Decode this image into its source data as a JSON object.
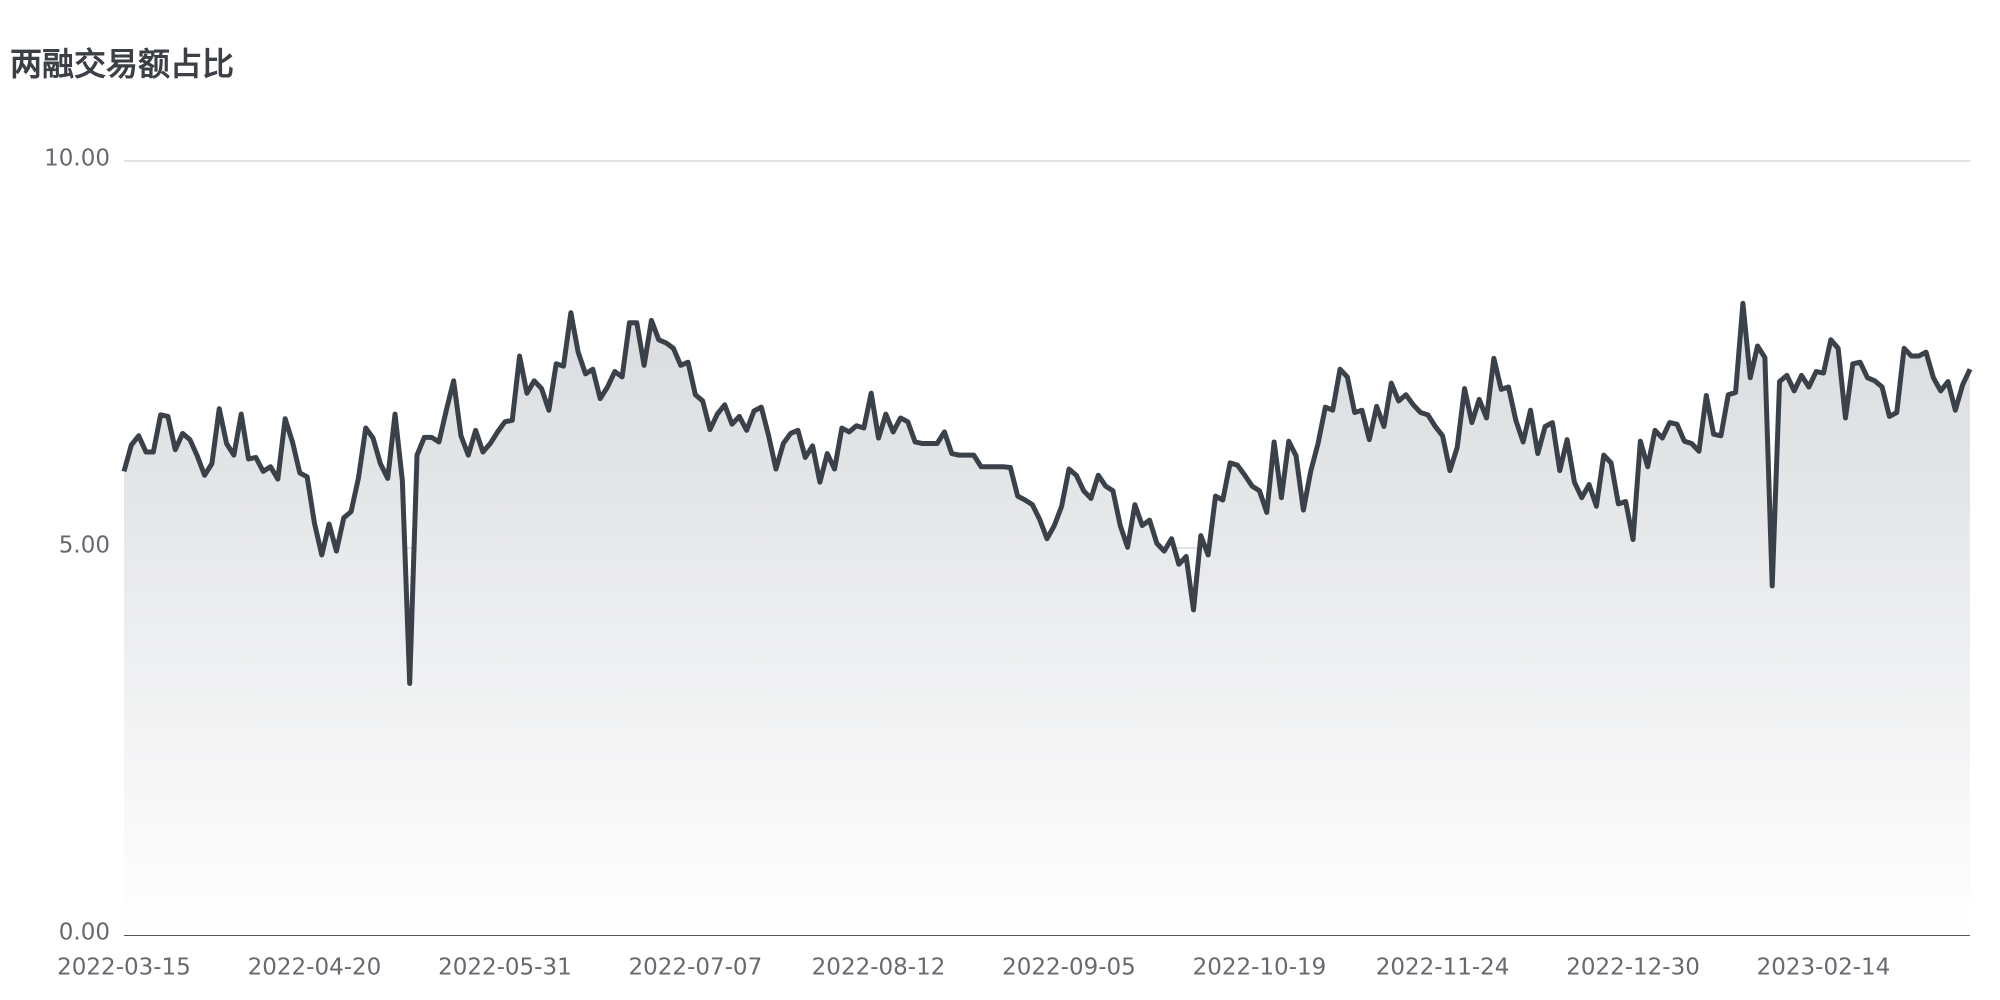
{
  "chart_data": {
    "type": "line",
    "title": "两融交易额占比",
    "color": "#3a4149",
    "area": true,
    "grid": true,
    "categories": [
      "2022-03-15",
      null,
      null,
      null,
      null,
      null,
      null,
      null,
      null,
      null,
      null,
      null,
      null,
      null,
      null,
      null,
      null,
      null,
      null,
      null,
      null,
      null,
      null,
      null,
      null,
      null,
      "2022-04-20",
      null,
      null,
      null,
      null,
      null,
      null,
      null,
      null,
      null,
      null,
      null,
      null,
      null,
      null,
      null,
      null,
      null,
      null,
      null,
      null,
      null,
      null,
      null,
      null,
      null,
      "2022-05-31",
      null,
      null,
      null,
      null,
      null,
      null,
      null,
      null,
      null,
      null,
      null,
      null,
      null,
      null,
      null,
      null,
      null,
      null,
      null,
      null,
      null,
      null,
      null,
      null,
      null,
      "2022-07-07",
      null,
      null,
      null,
      null,
      null,
      null,
      null,
      null,
      null,
      null,
      null,
      null,
      null,
      null,
      null,
      null,
      null,
      null,
      null,
      null,
      null,
      null,
      null,
      null,
      "2022-08-12",
      null,
      null,
      null,
      null,
      null,
      null,
      null,
      null,
      null,
      null,
      null,
      null,
      null,
      null,
      null,
      null,
      null,
      null,
      null,
      null,
      null,
      null,
      null,
      null,
      null,
      "2022-09-05",
      null,
      null,
      null,
      null,
      null,
      null,
      null,
      null,
      null,
      null,
      null,
      null,
      null,
      null,
      null,
      null,
      null,
      null,
      null,
      null,
      null,
      null,
      null,
      null,
      null,
      "2022-10-19",
      null,
      null,
      null,
      null,
      null,
      null,
      null,
      null,
      null,
      null,
      null,
      null,
      null,
      null,
      null,
      null,
      null,
      null,
      null,
      null,
      null,
      null,
      null,
      null,
      "2022-11-24",
      null,
      null,
      null,
      null,
      null,
      null,
      null,
      null,
      null,
      null,
      null,
      null,
      null,
      null,
      null,
      null,
      null,
      null,
      null,
      null,
      null,
      null,
      null,
      null,
      null,
      "2022-12-30",
      null,
      null,
      null,
      null,
      null,
      null,
      null,
      null,
      null,
      null,
      null,
      null,
      null,
      null,
      null,
      null,
      null,
      null,
      null,
      null,
      null,
      null,
      null,
      null,
      null,
      "2023-02-14",
      null,
      null,
      null,
      null,
      null,
      null,
      null,
      null,
      null,
      null,
      null,
      null,
      null,
      null,
      null,
      null,
      null,
      null,
      null,
      null
    ],
    "values": [
      5.99,
      6.33,
      6.45,
      6.24,
      6.24,
      6.72,
      6.7,
      6.27,
      6.48,
      6.4,
      6.19,
      5.94,
      6.09,
      6.8,
      6.35,
      6.2,
      6.73,
      6.15,
      6.17,
      5.99,
      6.05,
      5.89,
      6.67,
      6.37,
      5.97,
      5.92,
      5.32,
      4.91,
      5.31,
      4.96,
      5.39,
      5.47,
      5.9,
      6.55,
      6.42,
      6.09,
      5.9,
      6.73,
      5.87,
      3.25,
      6.2,
      6.43,
      6.43,
      6.37,
      6.78,
      7.16,
      6.45,
      6.2,
      6.52,
      6.24,
      6.35,
      6.5,
      6.63,
      6.65,
      7.48,
      7.0,
      7.16,
      7.06,
      6.78,
      7.38,
      7.35,
      8.04,
      7.53,
      7.25,
      7.31,
      6.93,
      7.08,
      7.28,
      7.21,
      7.91,
      7.91,
      7.36,
      7.94,
      7.69,
      7.65,
      7.58,
      7.36,
      7.4,
      6.98,
      6.9,
      6.53,
      6.73,
      6.85,
      6.6,
      6.7,
      6.52,
      6.77,
      6.82,
      6.45,
      6.02,
      6.35,
      6.48,
      6.52,
      6.17,
      6.32,
      5.85,
      6.22,
      6.02,
      6.55,
      6.5,
      6.58,
      6.55,
      7.0,
      6.42,
      6.73,
      6.5,
      6.68,
      6.63,
      6.37,
      6.35,
      6.35,
      6.35,
      6.5,
      6.22,
      6.2,
      6.2,
      6.2,
      6.05,
      6.05,
      6.05,
      6.05,
      6.04,
      5.67,
      5.62,
      5.56,
      5.37,
      5.12,
      5.29,
      5.54,
      6.02,
      5.94,
      5.74,
      5.64,
      5.94,
      5.8,
      5.74,
      5.29,
      5.01,
      5.56,
      5.29,
      5.36,
      5.06,
      4.96,
      5.12,
      4.79,
      4.89,
      4.2,
      5.16,
      4.91,
      5.67,
      5.62,
      6.1,
      6.07,
      5.94,
      5.8,
      5.74,
      5.46,
      6.37,
      5.65,
      6.38,
      6.19,
      5.49,
      5.99,
      6.35,
      6.82,
      6.78,
      7.31,
      7.21,
      6.75,
      6.78,
      6.4,
      6.83,
      6.57,
      7.13,
      6.9,
      6.98,
      6.85,
      6.75,
      6.72,
      6.57,
      6.45,
      6.0,
      6.3,
      7.06,
      6.62,
      6.92,
      6.68,
      7.45,
      7.05,
      7.08,
      6.65,
      6.37,
      6.78,
      6.22,
      6.57,
      6.62,
      6.0,
      6.4,
      5.85,
      5.65,
      5.82,
      5.54,
      6.2,
      6.1,
      5.57,
      5.6,
      5.11,
      6.38,
      6.05,
      6.52,
      6.42,
      6.62,
      6.6,
      6.38,
      6.35,
      6.25,
      6.97,
      6.47,
      6.45,
      6.98,
      7.01,
      8.16,
      7.2,
      7.61,
      7.46,
      4.51,
      7.15,
      7.23,
      7.03,
      7.23,
      7.08,
      7.28,
      7.26,
      7.69,
      7.58,
      6.68,
      7.38,
      7.4,
      7.2,
      7.16,
      7.08,
      6.7,
      6.75,
      7.58,
      7.48,
      7.48,
      7.53,
      7.2,
      7.03,
      7.15,
      6.78,
      7.11,
      7.31
    ],
    "ylim": [
      0,
      10
    ],
    "yticks": [
      {
        "value": 0,
        "label": "0.00"
      },
      {
        "value": 5,
        "label": "5.00"
      },
      {
        "value": 10,
        "label": "10.00"
      }
    ]
  }
}
